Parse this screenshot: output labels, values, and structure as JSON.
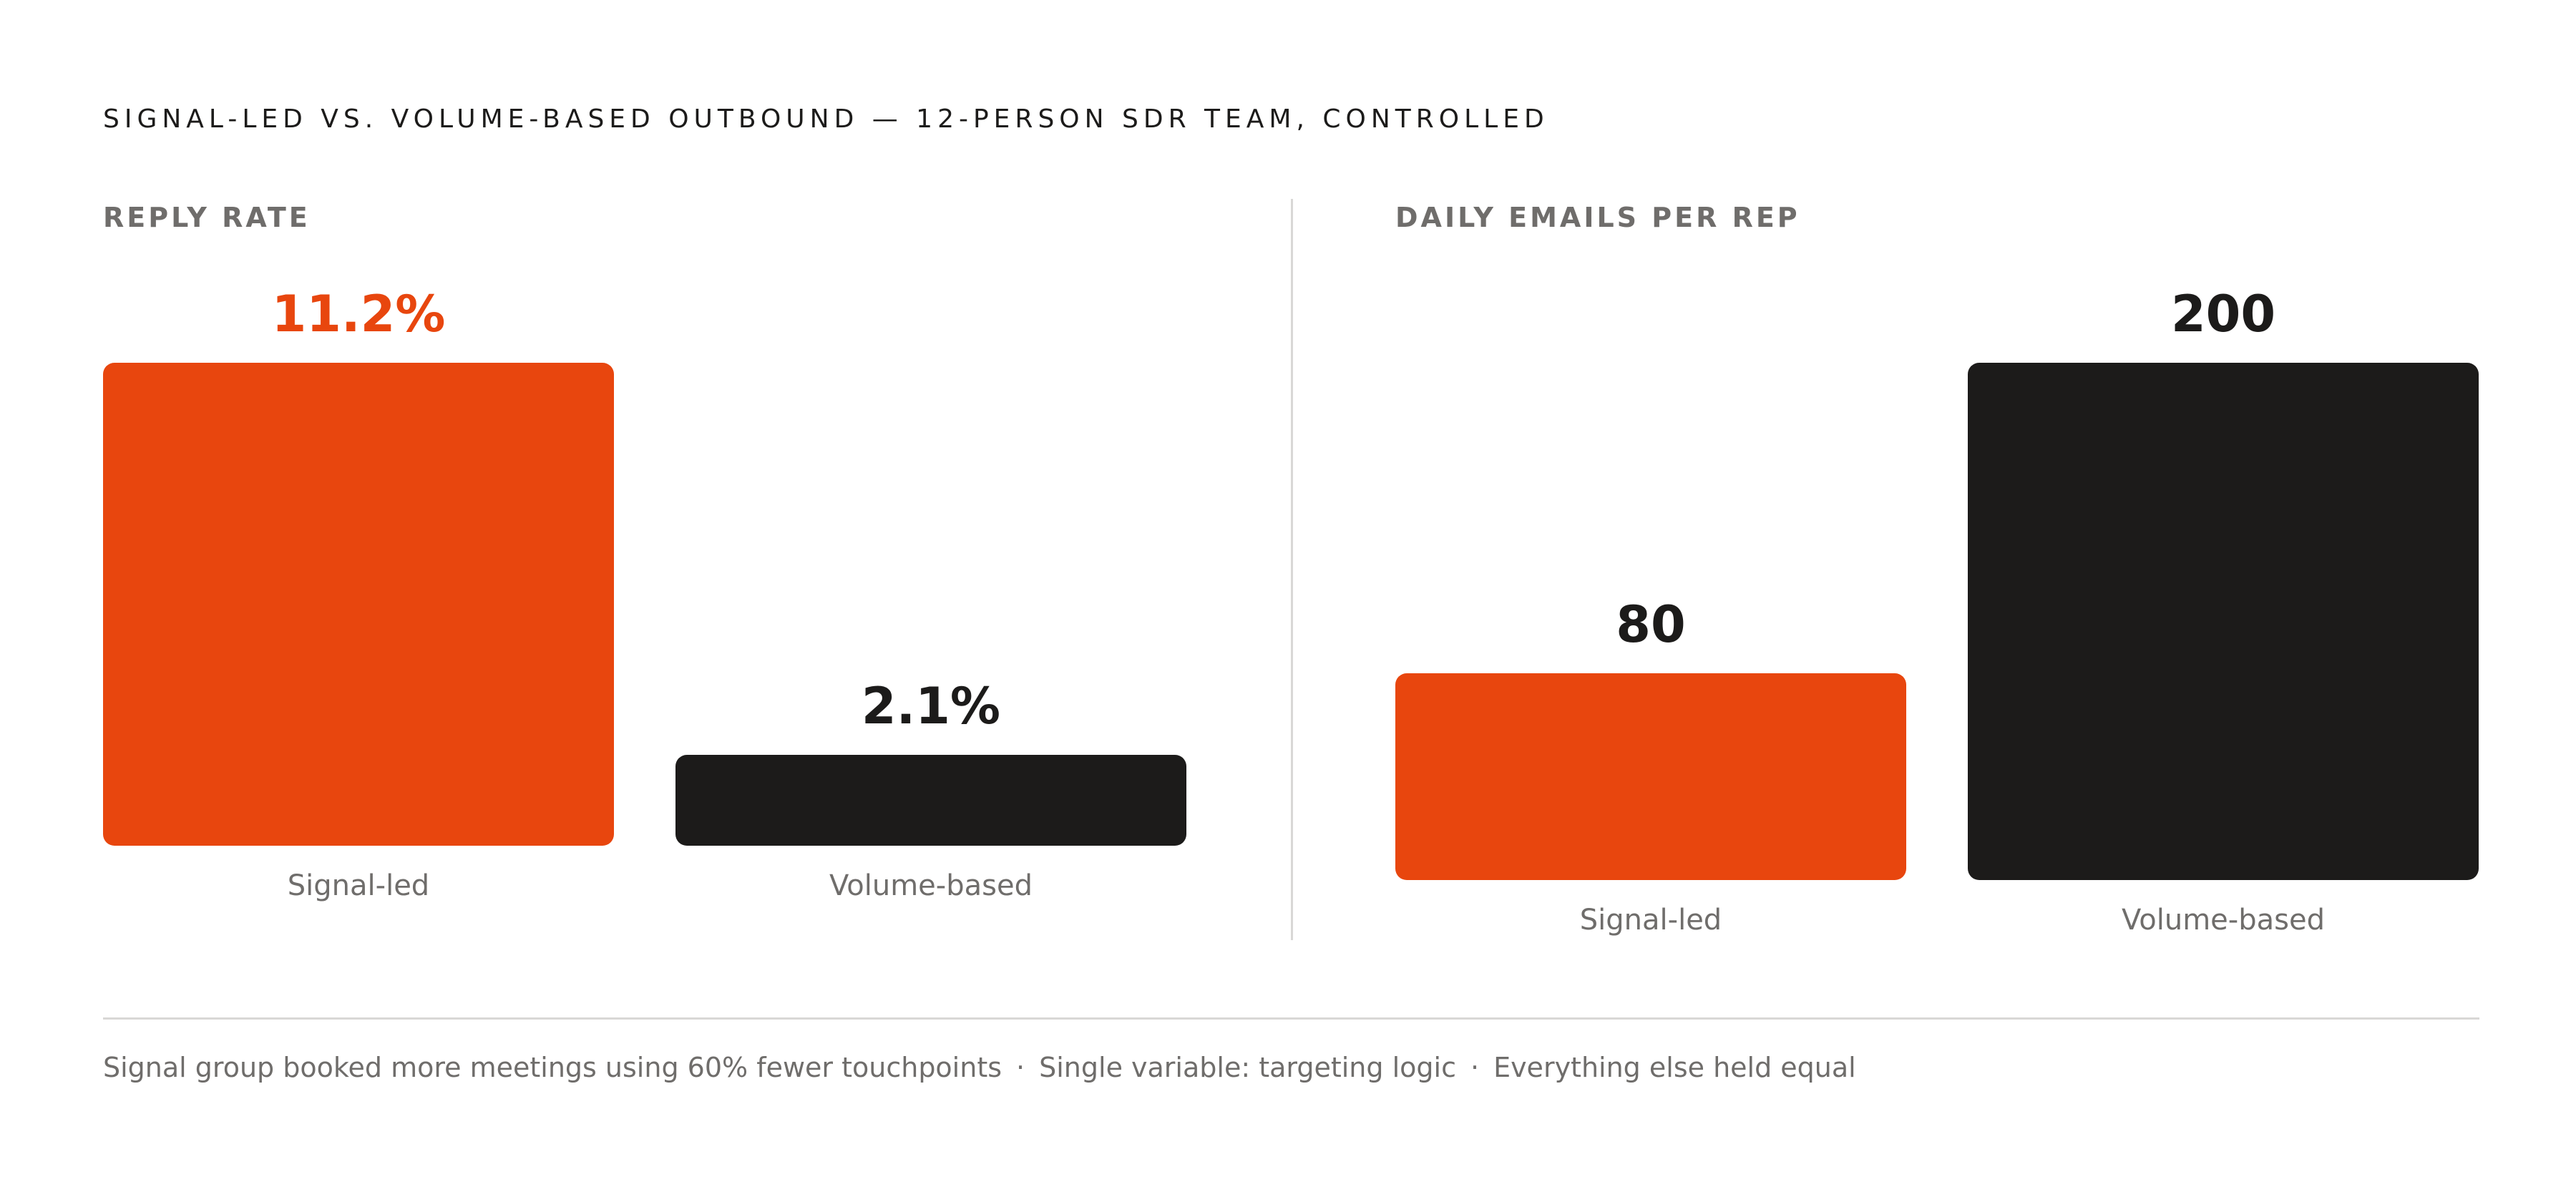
{
  "title": "SIGNAL-LED VS. VOLUME-BASED OUTBOUND — 12-PERSON SDR TEAM, CONTROLLED",
  "colors": {
    "signal": "#e8460e",
    "volume": "#1c1b1a"
  },
  "chart_data": [
    {
      "type": "bar",
      "title": "REPLY RATE",
      "categories": [
        "Signal-led",
        "Volume-based"
      ],
      "values": [
        11.2,
        2.1
      ],
      "value_labels": [
        "11.2%",
        "2.1%"
      ],
      "unit": "%",
      "ylim": [
        0,
        11.2
      ],
      "colors": [
        "#e8460e",
        "#1c1b1a"
      ],
      "value_label_colors": [
        "#e8460e",
        "#1c1b1a"
      ],
      "grid": false,
      "legend": "none"
    },
    {
      "type": "bar",
      "title": "DAILY EMAILS PER REP",
      "categories": [
        "Signal-led",
        "Volume-based"
      ],
      "values": [
        80,
        200
      ],
      "value_labels": [
        "80",
        "200"
      ],
      "unit": "",
      "ylim": [
        0,
        200
      ],
      "colors": [
        "#e8460e",
        "#1c1b1a"
      ],
      "value_label_colors": [
        "#1c1b1a",
        "#1c1b1a"
      ],
      "grid": false,
      "legend": "none"
    }
  ],
  "footnote": {
    "items": [
      "Signal group booked more meetings using 60% fewer touchpoints",
      "Single variable: targeting logic",
      "Everything else held equal"
    ],
    "separator": "·"
  }
}
